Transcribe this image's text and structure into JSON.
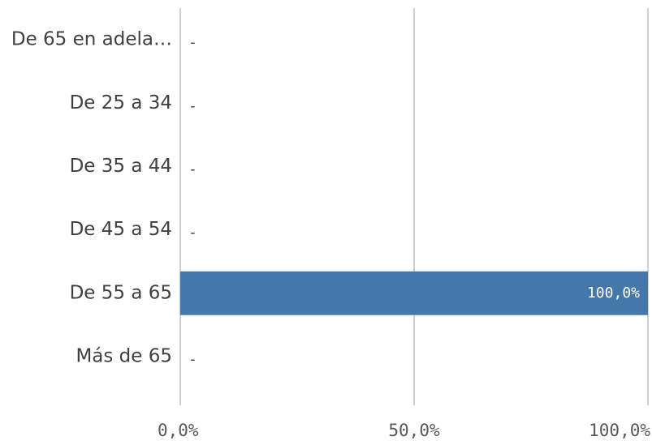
{
  "chart_data": {
    "type": "bar",
    "orientation": "horizontal",
    "categories": [
      "De 65 en adela…",
      "De 25 a 34",
      "De 35 a 44",
      "De 45 a 54",
      "De 55 a 65",
      "Más de 65"
    ],
    "values": [
      null,
      null,
      null,
      null,
      100,
      null
    ],
    "value_labels": [
      "-",
      "-",
      "-",
      "-",
      "100,0%",
      "-"
    ],
    "color": "#4477aa",
    "xlim": [
      0,
      100
    ],
    "xticks": [
      {
        "value": 0,
        "label": "0,0%"
      },
      {
        "value": 50,
        "label": "50,0%"
      },
      {
        "value": 100,
        "label": "100,0%"
      }
    ],
    "grid": true
  }
}
